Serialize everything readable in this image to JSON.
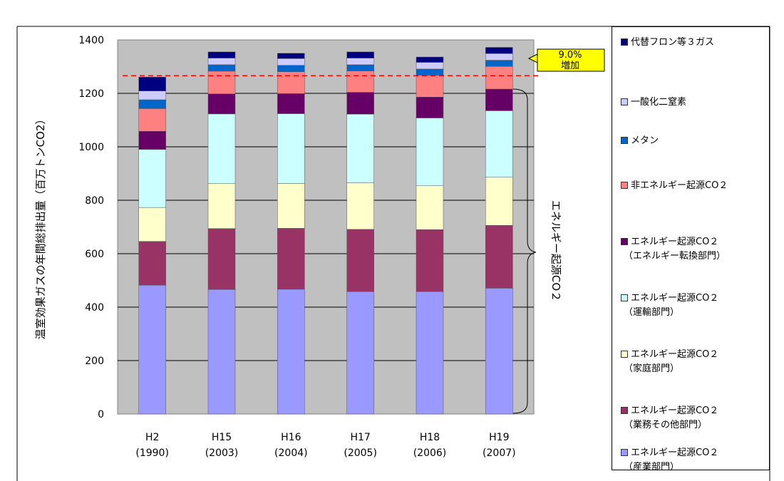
{
  "chart_data": {
    "type": "bar",
    "stacked": true,
    "ylabel": "温室効果ガスの年間総排出量（百万トンCO2）",
    "ylim": [
      0,
      1400
    ],
    "yticks": [
      0,
      200,
      400,
      600,
      800,
      1000,
      1200,
      1400
    ],
    "grid": true,
    "categories": [
      {
        "line1": "H2",
        "line2": "(1990)"
      },
      {
        "line1": "H15",
        "line2": "(2003)"
      },
      {
        "line1": "H16",
        "line2": "(2004)"
      },
      {
        "line1": "H17",
        "line2": "(2005)"
      },
      {
        "line1": "H18",
        "line2": "(2006)"
      },
      {
        "line1": "H19",
        "line2": "(2007)"
      }
    ],
    "series": [
      {
        "name": "エネルギー起源CO２（産業部門）",
        "name_line1": "エネルギー起源CO２",
        "name_line2": "（産業部門）",
        "color": "#9999ff",
        "values": [
          482,
          466,
          467,
          458,
          458,
          471
        ]
      },
      {
        "name": "エネルギー起源CO２（業務その他部門）",
        "name_line1": "エネルギー起源CO２",
        "name_line2": "（業務その他部門）",
        "color": "#993366",
        "values": [
          164,
          228,
          228,
          233,
          232,
          235
        ]
      },
      {
        "name": "エネルギー起源CO２（家庭部門）",
        "name_line1": "エネルギー起源CO２",
        "name_line2": "（家庭部門）",
        "color": "#ffffcc",
        "values": [
          127,
          168,
          168,
          174,
          164,
          180
        ]
      },
      {
        "name": "エネルギー起源CO２（運輸部門）",
        "name_line1": "エネルギー起源CO２",
        "name_line2": "（運輸部門）",
        "color": "#ccffff",
        "values": [
          217,
          261,
          261,
          257,
          254,
          249
        ]
      },
      {
        "name": "エネルギー起源CO２（エネルギー転換部門）",
        "name_line1": "エネルギー起源CO２",
        "name_line2": "（エネルギー転換部門）",
        "color": "#660066",
        "values": [
          68,
          75,
          75,
          82,
          78,
          81
        ]
      },
      {
        "name": "非エネルギー起源CO２",
        "name_line1": "非エネルギー起源CO２",
        "name_line2": "",
        "color": "#ff8080",
        "values": [
          85,
          85,
          82,
          80,
          82,
          85
        ]
      },
      {
        "name": "メタン",
        "name_line1": "メタン",
        "name_line2": "",
        "color": "#0066cc",
        "values": [
          33,
          24,
          24,
          23,
          23,
          23
        ]
      },
      {
        "name": "一酸化二窒素",
        "name_line1": "一酸化二窒素",
        "name_line2": "",
        "color": "#ccccff",
        "values": [
          33,
          25,
          25,
          25,
          25,
          25
        ]
      },
      {
        "name": "代替フロン等３ガス",
        "name_line1": "代替フロン等３ガス",
        "name_line2": "",
        "color": "#000080",
        "values": [
          52,
          23,
          20,
          23,
          20,
          23
        ]
      }
    ],
    "reference_line": {
      "value": 1266,
      "color": "#ff0000"
    },
    "callout": {
      "line1": "9.0%",
      "line2": "増加",
      "color": "#ffff00"
    },
    "brace_label": "エネルギー起源CO２",
    "legend_placement": "right"
  }
}
